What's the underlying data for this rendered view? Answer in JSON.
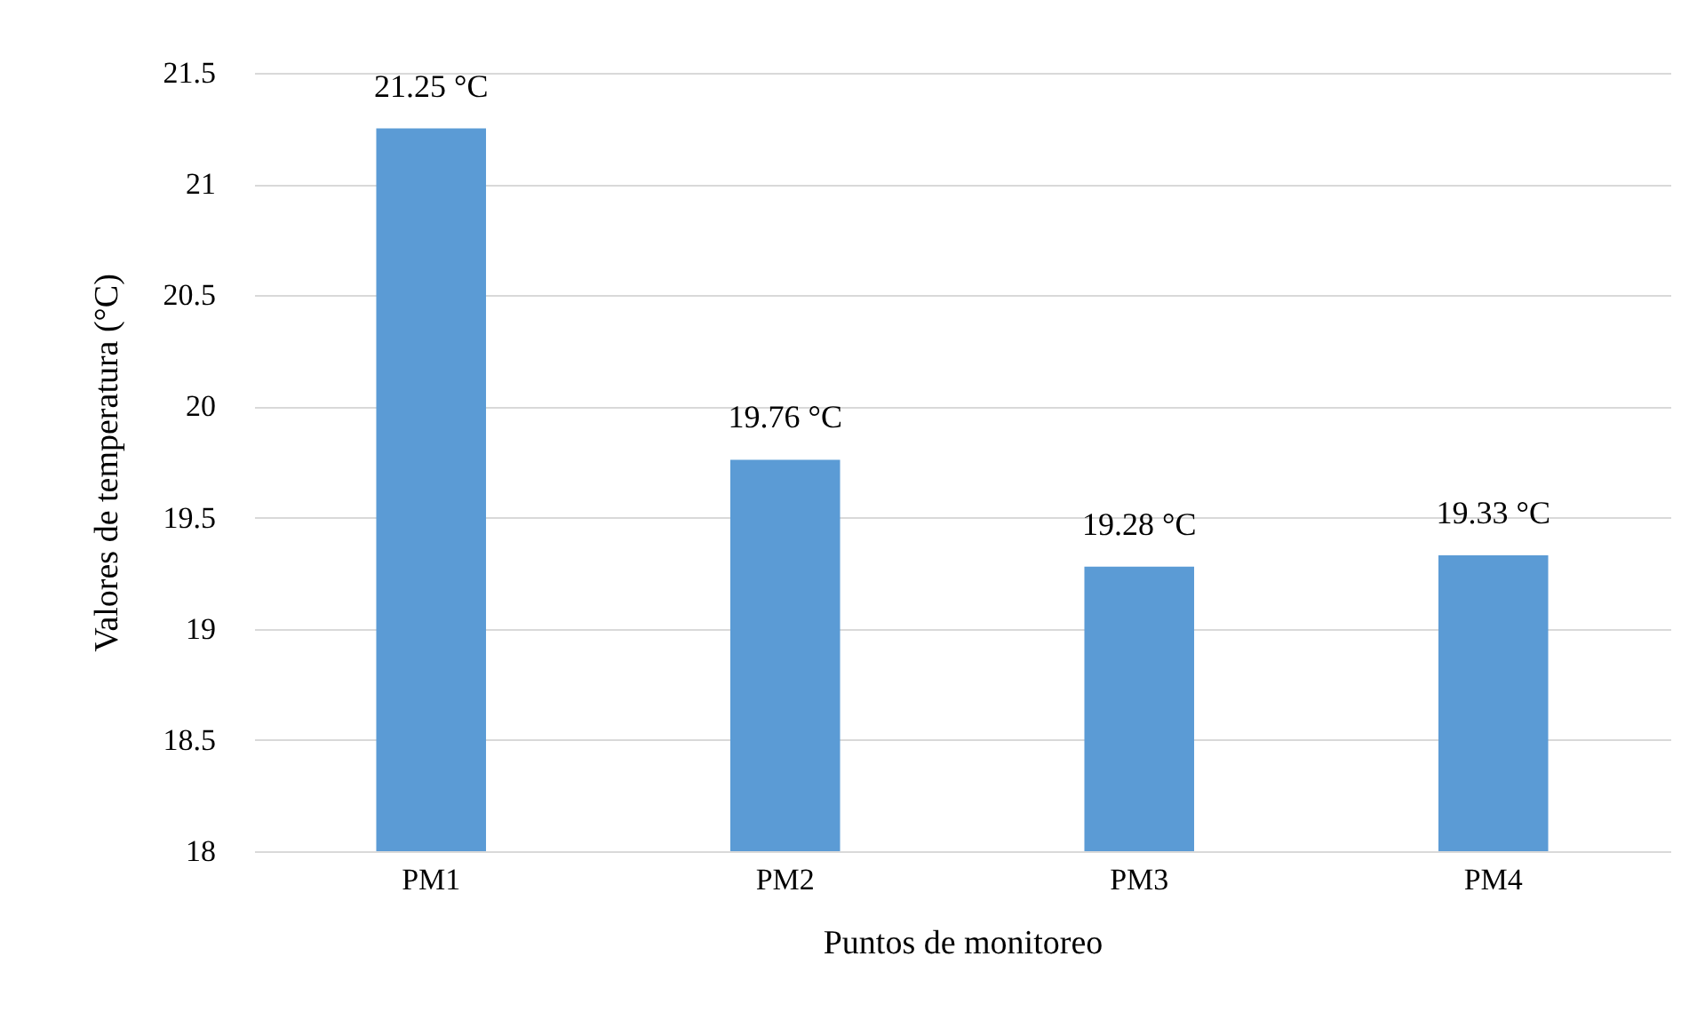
{
  "chart_data": {
    "type": "bar",
    "xlabel": "Puntos de monitoreo",
    "ylabel": "Valores de temperatura (°C)",
    "categories": [
      "PM1",
      "PM2",
      "PM3",
      "PM4"
    ],
    "values": [
      21.25,
      19.76,
      19.28,
      19.33
    ],
    "value_labels": [
      "21.25 °C",
      "19.76 °C",
      "19.28 °C",
      "19.33 °C"
    ],
    "color": "#5b9bd5",
    "ylim": [
      18,
      21.5
    ],
    "yticks": [
      18,
      18.5,
      19,
      19.5,
      20,
      20.5,
      21,
      21.5
    ],
    "grid": "y"
  }
}
